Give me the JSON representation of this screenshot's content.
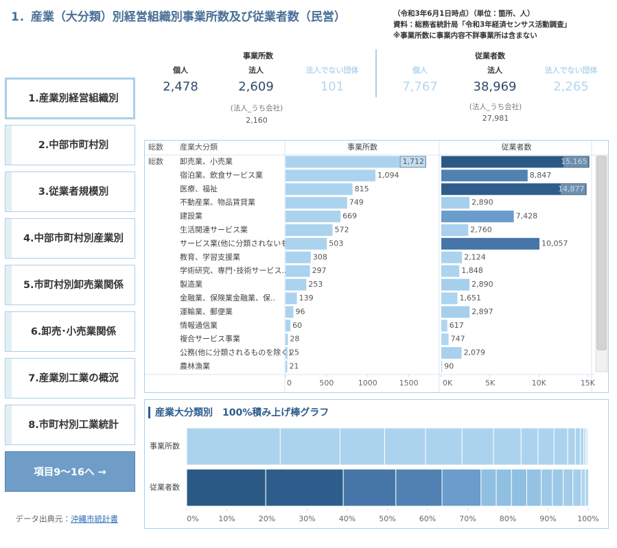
{
  "header": {
    "title": "1．産業（大分類）別経営組織別事業所数及び従業者数（民営）",
    "notes": [
      "（令和3年6月1日時点）（単位：箇所、人）",
      "資料：総務省統計局「令和3年経済センサス活動調査」",
      "※事業所数に事業内容不詳事業所は含まない"
    ]
  },
  "nav": {
    "items": [
      "1.産業別経営組織別",
      "2.中部市町村別",
      "3.従業者規模別",
      "4.中部市町村別産業別",
      "5.市町村別卸売業関係",
      "6.卸売･小売業関係",
      "7.産業別工業の概況",
      "8.市町村別工業統計"
    ],
    "next": "項目9～16へ →",
    "source_label": "データ出典元：",
    "source_link": "沖縄市統計書"
  },
  "kpis": [
    {
      "title": "事業所数",
      "items": [
        {
          "label": "個人",
          "value": "2,478",
          "color": "#2d4a6b"
        },
        {
          "label": "法人",
          "value": "2,609",
          "color": "#2d4a6b"
        },
        {
          "label": "法人でない団体",
          "value": "101",
          "color": "#b3d6ee"
        }
      ],
      "sub_label": "(法人_うち会社)",
      "sub_value": "2,160"
    },
    {
      "title": "従業者数",
      "items": [
        {
          "label": "個人",
          "value": "7,767",
          "color": "#b3d6ee"
        },
        {
          "label": "法人",
          "value": "38,969",
          "color": "#2d4a6b"
        },
        {
          "label": "法人でない団体",
          "value": "2,265",
          "color": "#b3d6ee"
        }
      ],
      "sub_label": "(法人_うち会社)",
      "sub_value": "27,981"
    }
  ],
  "chart_data": [
    {
      "type": "bar",
      "orientation": "horizontal",
      "corner_label": "総数",
      "category_header": "産業大分類",
      "group_label": "総数",
      "categories": [
        "卸売業、小売業",
        "宿泊業、飲食サービス業",
        "医療、福祉",
        "不動産業、物品賃貸業",
        "建設業",
        "生活関連サービス業",
        "サービス業(他に分類されないも..",
        "教育、学習支援業",
        "学術研究、専門･技術サービス..",
        "製造業",
        "金融業、保険業金融業、保..",
        "運輸業、郵便業",
        "情報通信業",
        "複合サービス事業",
        "公務(他に分類されるものを除く)",
        "農林漁業"
      ],
      "series": [
        {
          "name": "事業所数",
          "color": "#abd3ee",
          "values": [
            1712,
            1094,
            815,
            749,
            669,
            572,
            503,
            308,
            297,
            253,
            139,
            96,
            60,
            28,
            25,
            21
          ],
          "value_labels": [
            "1,712",
            "1,094",
            "815",
            "749",
            "669",
            "572",
            "503",
            "308",
            "297",
            "253",
            "139",
            "96",
            "60",
            "28",
            "25",
            "21"
          ],
          "xlim": [
            0,
            1870
          ],
          "xticks": [
            0,
            500,
            1000,
            1500
          ]
        },
        {
          "name": "従業者数",
          "colors": [
            "#2b5986",
            "#5081b3",
            "#2e5d8b",
            "#a6cfec",
            "#6a9ccc",
            "#a9d1ed",
            "#4676a8",
            "#abd3ee",
            "#acd4ee",
            "#a6cfec",
            "#add4ee",
            "#a6cfec",
            "#b0d6ef",
            "#b0d6ef",
            "#a9d1ed",
            "#b2d7ef"
          ],
          "values": [
            15165,
            8847,
            14877,
            2890,
            7428,
            2760,
            10057,
            2124,
            1848,
            2890,
            1651,
            2897,
            617,
            747,
            2079,
            90
          ],
          "value_labels": [
            "15,165",
            "8,847",
            "14,877",
            "2,890",
            "7,428",
            "2,760",
            "10,057",
            "2,124",
            "1,848",
            "2,890",
            "1,651",
            "2,897",
            "617",
            "747",
            "2,079",
            "90"
          ],
          "xlim": [
            0,
            15400
          ],
          "xticks": [
            {
              "value": 0,
              "label": "0K"
            },
            {
              "value": 5000,
              "label": "5K"
            },
            {
              "value": 10000,
              "label": "10K"
            },
            {
              "value": 15000,
              "label": "15K"
            }
          ]
        }
      ]
    },
    {
      "type": "stacked_bar_100",
      "orientation": "horizontal",
      "title": "産業大分類別　100%積み上げ棒グラフ",
      "categories": [
        "事業所数",
        "従業者数"
      ],
      "stacks": [
        {
          "values": [
            23.3,
            14.9,
            11.1,
            10.2,
            9.1,
            7.8,
            6.9,
            4.2,
            4.0,
            3.4,
            1.9,
            1.3,
            0.8,
            0.4,
            0.3,
            0.3
          ],
          "colors": [
            "#abd3ee",
            "#abd3ee",
            "#abd3ee",
            "#abd3ee",
            "#abd3ee",
            "#abd3ee",
            "#abd3ee",
            "#abd3ee",
            "#abd3ee",
            "#abd3ee",
            "#abd3ee",
            "#abd3ee",
            "#abd3ee",
            "#abd3ee",
            "#abd3ee",
            "#abd3ee"
          ]
        },
        {
          "values": [
            19.7,
            19.3,
            13.1,
            11.5,
            9.7,
            3.8,
            3.8,
            3.8,
            3.6,
            2.8,
            2.7,
            2.4,
            2.1,
            1.0,
            0.8,
            0.1
          ],
          "colors": [
            "#2b5986",
            "#2e5d8b",
            "#4676a8",
            "#5081b3",
            "#6a9ccc",
            "#8fbfe1",
            "#8fbfe1",
            "#8fbfe1",
            "#93c2e3",
            "#9cc8e8",
            "#9dc9e8",
            "#a1cbe9",
            "#a4ceeb",
            "#acd4ee",
            "#aed5ee",
            "#b2d7ef"
          ]
        }
      ],
      "xlim": [
        0,
        100
      ],
      "xticks": [
        {
          "value": 0,
          "label": "0%"
        },
        {
          "value": 10,
          "label": "10%"
        },
        {
          "value": 20,
          "label": "20%"
        },
        {
          "value": 30,
          "label": "30%"
        },
        {
          "value": 40,
          "label": "40%"
        },
        {
          "value": 50,
          "label": "50%"
        },
        {
          "value": 60,
          "label": "60%"
        },
        {
          "value": 70,
          "label": "70%"
        },
        {
          "value": 80,
          "label": "80%"
        },
        {
          "value": 90,
          "label": "90%"
        },
        {
          "value": 100,
          "label": "100%"
        }
      ]
    }
  ]
}
